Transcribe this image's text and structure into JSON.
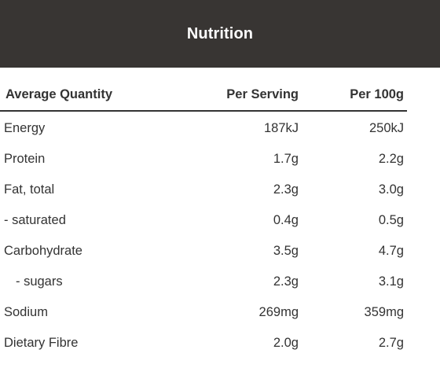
{
  "header": {
    "title": "Nutrition"
  },
  "table": {
    "columns": [
      "Average Quantity",
      "Per Serving",
      "Per 100g"
    ],
    "rows": [
      {
        "name": "Energy",
        "serving": "187kJ",
        "per100": "250kJ"
      },
      {
        "name": "Protein",
        "serving": "1.7g",
        "per100": "2.2g"
      },
      {
        "name": "Fat, total",
        "serving": "2.3g",
        "per100": "3.0g"
      },
      {
        "name": "- saturated",
        "serving": "0.4g",
        "per100": "0.5g"
      },
      {
        "name": "Carbohydrate",
        "serving": "3.5g",
        "per100": "4.7g"
      },
      {
        "name": "- sugars",
        "serving": "2.3g",
        "per100": "3.1g"
      },
      {
        "name": "Sodium",
        "serving": "269mg",
        "per100": "359mg"
      },
      {
        "name": "Dietary Fibre",
        "serving": "2.0g",
        "per100": "2.7g"
      }
    ]
  },
  "colors": {
    "header_bg": "#383533",
    "header_text": "#ffffff",
    "body_text": "#333333"
  }
}
